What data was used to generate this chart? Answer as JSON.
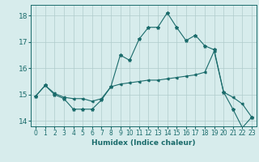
{
  "title": "",
  "xlabel": "Humidex (Indice chaleur)",
  "background_color": "#d7ecec",
  "grid_color": "#b0cccc",
  "line_color": "#1a6b6b",
  "xlim": [
    -0.5,
    23.5
  ],
  "ylim": [
    13.8,
    18.4
  ],
  "yticks": [
    14,
    15,
    16,
    17,
    18
  ],
  "xticks": [
    0,
    1,
    2,
    3,
    4,
    5,
    6,
    7,
    8,
    9,
    10,
    11,
    12,
    13,
    14,
    15,
    16,
    17,
    18,
    19,
    20,
    21,
    22,
    23
  ],
  "line1_x": [
    0,
    1,
    2,
    3,
    4,
    5,
    6,
    7,
    8,
    9,
    10,
    11,
    12,
    13,
    14,
    15,
    16,
    17,
    18,
    19,
    20,
    21,
    22,
    23
  ],
  "line1_y": [
    14.95,
    15.35,
    15.0,
    14.85,
    14.45,
    14.45,
    14.45,
    14.8,
    15.3,
    16.5,
    16.3,
    17.1,
    17.55,
    17.55,
    18.1,
    17.55,
    17.05,
    17.25,
    16.85,
    16.7,
    15.1,
    14.45,
    13.75,
    14.15
  ],
  "line2_x": [
    0,
    1,
    2,
    3,
    4,
    5,
    6,
    7,
    8,
    9,
    10,
    11,
    12,
    13,
    14,
    15,
    16,
    17,
    18,
    19,
    20,
    21,
    22,
    23
  ],
  "line2_y": [
    14.95,
    15.35,
    15.05,
    14.9,
    14.85,
    14.85,
    14.75,
    14.85,
    15.3,
    15.4,
    15.45,
    15.5,
    15.55,
    15.55,
    15.6,
    15.65,
    15.7,
    15.75,
    15.85,
    16.65,
    15.1,
    14.9,
    14.65,
    14.15
  ]
}
